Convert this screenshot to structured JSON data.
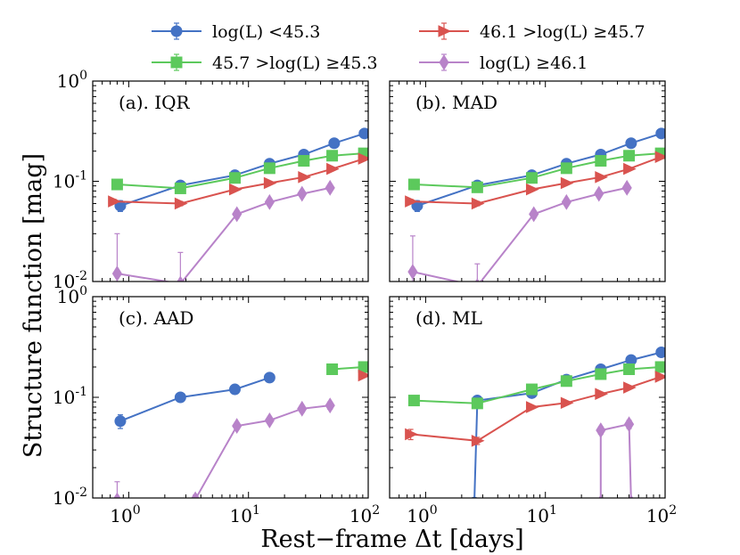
{
  "chart_data": {
    "type": "line",
    "xscale": "log",
    "yscale": "log",
    "xlim": [
      0.5,
      100
    ],
    "ylim": [
      0.01,
      1
    ],
    "xlabel": "Rest−frame Δt [days]",
    "ylabel": "Structure function [mag]",
    "x_tick_labels": [
      "10",
      "10",
      "10"
    ],
    "x_tick_exponents": [
      "0",
      "1",
      "2"
    ],
    "y_tick_labels": [
      "10",
      "10",
      "10"
    ],
    "y_tick_exponents": [
      "-2",
      "-1",
      "0"
    ],
    "legend": [
      {
        "series": "lum1",
        "label": "log(L) <45.3",
        "color": "#4472c4",
        "marker": "circle"
      },
      {
        "series": "lum2",
        "label": "45.7 >log(L) ≥45.3",
        "color": "#5cc95c",
        "marker": "square"
      },
      {
        "series": "lum3",
        "label": "46.1 >log(L) ≥45.7",
        "color": "#d9534f",
        "marker": "triangle-right"
      },
      {
        "series": "lum4",
        "label": "log(L) ≥46.1",
        "color": "#b883c9",
        "marker": "diamond"
      }
    ],
    "panels": [
      {
        "label": "(a). IQR",
        "series": [
          {
            "name": "lum1",
            "x": [
              0.85,
              2.7,
              7.7,
              15,
              29,
              52,
              93
            ],
            "y": [
              0.057,
              0.091,
              0.115,
              0.15,
              0.185,
              0.24,
              0.3
            ],
            "err": [
              0.007,
              0.004,
              0.004,
              0.004,
              0.005,
              0.006,
              0.007
            ]
          },
          {
            "name": "lum2",
            "x": [
              0.8,
              2.7,
              7.7,
              15,
              29,
              50,
              92
            ],
            "y": [
              0.093,
              0.085,
              0.108,
              0.135,
              0.16,
              0.18,
              0.19
            ],
            "err": [
              0.004,
              0.003,
              0.003,
              0.003,
              0.004,
              0.004,
              0.005
            ]
          },
          {
            "name": "lum3",
            "x": [
              0.75,
              2.7,
              7.7,
              15,
              29,
              50,
              92
            ],
            "y": [
              0.063,
              0.06,
              0.083,
              0.096,
              0.11,
              0.133,
              0.168
            ],
            "err": [
              0.003,
              0.003,
              0.003,
              0.003,
              0.004,
              0.004,
              0.005
            ]
          },
          {
            "name": "lum4",
            "x": [
              0.8,
              2.7,
              8.0,
              15,
              28,
              48
            ],
            "y": [
              0.012,
              0.0095,
              0.047,
              0.062,
              0.075,
              0.086
            ],
            "err": [
              0.018,
              0.01,
              0.004,
              0.004,
              0.005,
              0.006
            ]
          }
        ]
      },
      {
        "label": "(b). MAD",
        "series": [
          {
            "name": "lum1",
            "x": [
              0.85,
              2.7,
              7.7,
              15,
              29,
              52,
              93
            ],
            "y": [
              0.057,
              0.091,
              0.115,
              0.15,
              0.185,
              0.24,
              0.3
            ],
            "err": [
              0.007,
              0.004,
              0.004,
              0.004,
              0.005,
              0.006,
              0.007
            ]
          },
          {
            "name": "lum2",
            "x": [
              0.8,
              2.7,
              7.7,
              15,
              29,
              50,
              92
            ],
            "y": [
              0.093,
              0.087,
              0.108,
              0.135,
              0.16,
              0.18,
              0.19
            ],
            "err": [
              0.004,
              0.003,
              0.003,
              0.003,
              0.004,
              0.004,
              0.005
            ]
          },
          {
            "name": "lum3",
            "x": [
              0.75,
              2.7,
              7.7,
              15,
              29,
              50,
              92
            ],
            "y": [
              0.063,
              0.06,
              0.083,
              0.096,
              0.11,
              0.133,
              0.175
            ],
            "err": [
              0.003,
              0.003,
              0.003,
              0.003,
              0.004,
              0.004,
              0.005
            ]
          },
          {
            "name": "lum4",
            "x": [
              0.78,
              2.7,
              8.0,
              15,
              28,
              48
            ],
            "y": [
              0.0125,
              0.009,
              0.047,
              0.062,
              0.075,
              0.086
            ],
            "err": [
              0.016,
              0.006,
              0.004,
              0.004,
              0.005,
              0.006
            ]
          }
        ]
      },
      {
        "label": "(c). AAD",
        "series": [
          {
            "name": "lum1",
            "x": [
              0.85,
              2.7,
              7.7,
              15
            ],
            "y": [
              0.058,
              0.1,
              0.12,
              0.157
            ],
            "err": [
              0.009,
              0.004,
              0.004,
              0.004
            ]
          },
          {
            "name": "lum2",
            "x": [
              50,
              92
            ],
            "y": [
              0.19,
              0.2
            ],
            "err": [
              0.005,
              0.006
            ]
          },
          {
            "name": "lum3",
            "x": [
              92
            ],
            "y": [
              0.165
            ],
            "err": [
              0.005
            ]
          },
          {
            "name": "lum4",
            "x": [
              0.8,
              3.6,
              8.0,
              15,
              28,
              48
            ],
            "y": [
              0.0095,
              0.0097,
              0.052,
              0.059,
              0.077,
              0.083
            ],
            "err": [
              0.005,
              0.001,
              0.004,
              0.004,
              0.006,
              0.007
            ]
          }
        ]
      },
      {
        "label": "(d). ML",
        "series": [
          {
            "name": "lum1",
            "x": [
              2.55,
              2.7,
              7.7,
              15,
              29,
              52,
              93
            ],
            "y": [
              0.009,
              0.093,
              0.11,
              0.15,
              0.19,
              0.235,
              0.28
            ],
            "err": [
              0,
              0.004,
              0.004,
              0.004,
              0.005,
              0.006,
              0.007
            ]
          },
          {
            "name": "lum2",
            "x": [
              0.8,
              2.7,
              7.7,
              15,
              29,
              50,
              92
            ],
            "y": [
              0.093,
              0.087,
              0.12,
              0.145,
              0.17,
              0.19,
              0.2
            ],
            "err": [
              0.004,
              0.003,
              0.003,
              0.003,
              0.004,
              0.004,
              0.005
            ]
          },
          {
            "name": "lum3",
            "x": [
              0.75,
              2.7,
              7.7,
              15,
              29,
              50,
              92
            ],
            "y": [
              0.043,
              0.037,
              0.08,
              0.088,
              0.108,
              0.125,
              0.16
            ],
            "err": [
              0.005,
              0.003,
              0.003,
              0.003,
              0.004,
              0.004,
              0.005
            ]
          },
          {
            "name": "lum4",
            "x": [
              29,
              29,
              50,
              52
            ],
            "y": [
              0.009,
              0.047,
              0.054,
              0.009
            ],
            "err": [
              0,
              0.004,
              0.005,
              0
            ]
          }
        ]
      }
    ]
  }
}
